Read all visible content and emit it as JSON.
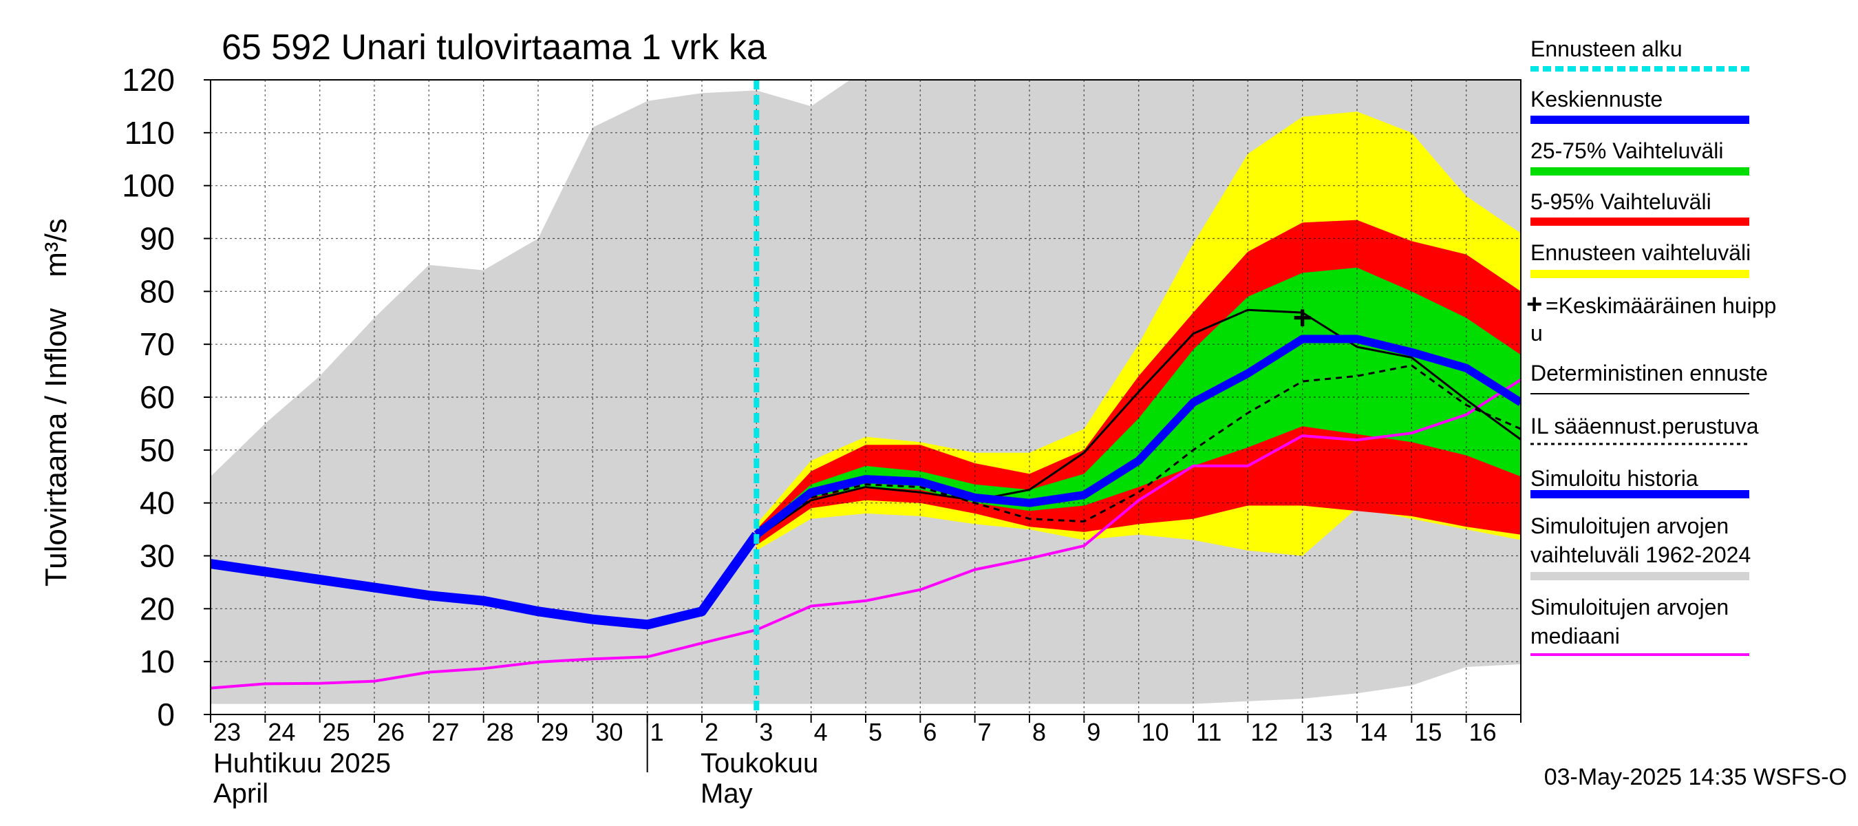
{
  "chart_data": {
    "type": "area",
    "title": "65 592 Unari tulovirtaama 1 vrk ka",
    "ylabel": "Tulovirtaama / Inflow",
    "yunit": "m³/s",
    "ylim": [
      0,
      120
    ],
    "yticks": [
      0,
      10,
      20,
      30,
      40,
      50,
      60,
      70,
      80,
      90,
      100,
      110,
      120
    ],
    "x_dates": [
      "2025-04-23",
      "2025-04-24",
      "2025-04-25",
      "2025-04-26",
      "2025-04-27",
      "2025-04-28",
      "2025-04-29",
      "2025-04-30",
      "2025-05-01",
      "2025-05-02",
      "2025-05-03",
      "2025-05-04",
      "2025-05-05",
      "2025-05-06",
      "2025-05-07",
      "2025-05-08",
      "2025-05-09",
      "2025-05-10",
      "2025-05-11",
      "2025-05-12",
      "2025-05-13",
      "2025-05-14",
      "2025-05-15",
      "2025-05-16",
      "2025-05-17"
    ],
    "xlim": [
      "2025-04-23",
      "2025-05-17"
    ],
    "day_labels": [
      "23",
      "24",
      "25",
      "26",
      "27",
      "28",
      "29",
      "30",
      "1",
      "2",
      "3",
      "4",
      "5",
      "6",
      "7",
      "8",
      "9",
      "10",
      "11",
      "12",
      "13",
      "14",
      "15",
      "16"
    ],
    "month_labels": {
      "april_fi": "Huhtikuu  2025",
      "april_en": "April",
      "may_fi": "Toukokuu",
      "may_en": "May"
    },
    "forecast_start": "2025-05-03",
    "grid": true,
    "legend_position": "right",
    "legend": [
      {
        "label": "Ennusteen alku",
        "color": "#00e5e5",
        "style": "dashed"
      },
      {
        "label": "Keskiennuste",
        "color": "#0000ff",
        "style": "thick"
      },
      {
        "label": "25-75% Vaihteluväli",
        "color": "#00dd00",
        "style": "thick"
      },
      {
        "label": "5-95% Vaihteluväli",
        "color": "#ff0000",
        "style": "thick"
      },
      {
        "label": "Ennusteen vaihteluväli",
        "color": "#ffff00",
        "style": "thick"
      },
      {
        "label": "=Keskimääräinen huipp u",
        "color": "#000000",
        "style": "plus"
      },
      {
        "label": "Deterministinen ennuste",
        "color": "#000000",
        "style": "thin"
      },
      {
        "label": "IL sääennust.perustuva",
        "color": "#000000",
        "style": "dotted"
      },
      {
        "label": "Simuloitu historia",
        "color": "#0000ff",
        "style": "thick"
      },
      {
        "label": "Simuloitujen arvojen vaihteluväli 1962-2024",
        "color": "#d3d3d3",
        "style": "thick"
      },
      {
        "label": "Simuloitujen arvojen mediaani",
        "color": "#ff00ff",
        "style": "thin"
      }
    ],
    "series": [
      {
        "name": "Simuloitujen arvojen vaihteluväli 1962-2024",
        "kind": "band",
        "x": [
          "2025-04-23",
          "2025-04-24",
          "2025-04-25",
          "2025-04-26",
          "2025-04-27",
          "2025-04-28",
          "2025-04-29",
          "2025-04-30",
          "2025-05-01",
          "2025-05-02",
          "2025-05-03",
          "2025-05-04",
          "2025-05-05",
          "2025-05-06",
          "2025-05-07",
          "2025-05-08",
          "2025-05-09",
          "2025-05-10",
          "2025-05-11",
          "2025-05-12",
          "2025-05-13",
          "2025-05-14",
          "2025-05-15",
          "2025-05-16",
          "2025-05-17"
        ],
        "lower": [
          2.0,
          2.0,
          2.0,
          2.0,
          2.0,
          2.0,
          2.0,
          2.0,
          2.0,
          2.0,
          2.0,
          2.0,
          2.0,
          2.0,
          2.0,
          2.0,
          2.0,
          2.0,
          2.0,
          2.5,
          3.0,
          4.0,
          5.5,
          9.0,
          9.5
        ],
        "upper": [
          45,
          55,
          64,
          75,
          85,
          84,
          90,
          111,
          116,
          117.5,
          118,
          115,
          122,
          122,
          122,
          122,
          122,
          122,
          122,
          122,
          122,
          122,
          122,
          122,
          122
        ]
      },
      {
        "name": "Ennusteen vaihteluväli",
        "kind": "band",
        "x": [
          "2025-05-03",
          "2025-05-04",
          "2025-05-05",
          "2025-05-06",
          "2025-05-07",
          "2025-05-08",
          "2025-05-09",
          "2025-05-10",
          "2025-05-11",
          "2025-05-12",
          "2025-05-13",
          "2025-05-14",
          "2025-05-15",
          "2025-05-16",
          "2025-05-17"
        ],
        "lower": [
          31,
          37,
          38,
          37.5,
          36,
          35,
          33,
          34,
          33,
          31,
          30,
          39,
          37,
          35,
          33
        ],
        "upper": [
          36,
          48,
          52.5,
          51.5,
          49.5,
          49.5,
          54,
          70,
          89,
          106,
          113,
          114,
          110,
          98,
          91
        ]
      },
      {
        "name": "5-95% Vaihteluväli",
        "kind": "band",
        "x": [
          "2025-05-03",
          "2025-05-04",
          "2025-05-05",
          "2025-05-06",
          "2025-05-07",
          "2025-05-08",
          "2025-05-09",
          "2025-05-10",
          "2025-05-11",
          "2025-05-12",
          "2025-05-13",
          "2025-05-14",
          "2025-05-15",
          "2025-05-16",
          "2025-05-17"
        ],
        "lower": [
          32,
          39,
          40.5,
          40,
          38,
          35.5,
          34.5,
          36,
          37,
          39.5,
          39.5,
          38.5,
          37.5,
          35.5,
          34
        ],
        "upper": [
          35,
          46,
          51,
          51,
          47.5,
          45.5,
          50,
          64,
          76,
          87.5,
          93,
          93.5,
          89.5,
          87,
          80
        ]
      },
      {
        "name": "25-75% Vaihteluväli",
        "kind": "band",
        "x": [
          "2025-05-03",
          "2025-05-04",
          "2025-05-05",
          "2025-05-06",
          "2025-05-07",
          "2025-05-08",
          "2025-05-09",
          "2025-05-10",
          "2025-05-11",
          "2025-05-12",
          "2025-05-13",
          "2025-05-14",
          "2025-05-15",
          "2025-05-16",
          "2025-05-17"
        ],
        "lower": [
          33,
          41,
          43,
          42.5,
          40,
          38.5,
          39.5,
          43,
          47,
          50.5,
          54.5,
          53,
          51.5,
          49,
          45
        ],
        "upper": [
          34.5,
          43.5,
          47,
          46,
          43.5,
          42.5,
          45.5,
          56,
          69,
          79,
          83.5,
          84.5,
          80,
          75,
          68
        ]
      },
      {
        "name": "Simuloitujen arvojen mediaani",
        "kind": "line",
        "x": [
          "2025-04-23",
          "2025-04-24",
          "2025-04-25",
          "2025-04-26",
          "2025-04-27",
          "2025-04-28",
          "2025-04-29",
          "2025-04-30",
          "2025-05-01",
          "2025-05-02",
          "2025-05-03",
          "2025-05-04",
          "2025-05-05",
          "2025-05-06",
          "2025-05-07",
          "2025-05-08",
          "2025-05-09",
          "2025-05-10",
          "2025-05-11",
          "2025-05-12",
          "2025-05-13",
          "2025-05-14",
          "2025-05-15",
          "2025-05-16",
          "2025-05-17"
        ],
        "values": [
          5.0,
          5.8,
          5.9,
          6.3,
          8.0,
          8.7,
          9.9,
          10.5,
          10.9,
          13.5,
          16.0,
          20.5,
          21.5,
          23.6,
          27.4,
          29.5,
          31.9,
          40.5,
          47.0,
          47.0,
          52.7,
          51.9,
          53.2,
          56.7,
          63.3
        ]
      },
      {
        "name": "Simuloitu historia",
        "kind": "line",
        "x": [
          "2025-04-23",
          "2025-04-24",
          "2025-04-25",
          "2025-04-26",
          "2025-04-27",
          "2025-04-28",
          "2025-04-29",
          "2025-04-30",
          "2025-05-01",
          "2025-05-02",
          "2025-05-03"
        ],
        "values": [
          28.5,
          27.0,
          25.5,
          24.0,
          22.5,
          21.5,
          19.5,
          18.0,
          17.0,
          19.5,
          34.0
        ]
      },
      {
        "name": "IL sääennust.perustuva",
        "kind": "line",
        "x": [
          "2025-05-03",
          "2025-05-04",
          "2025-05-05",
          "2025-05-06",
          "2025-05-07",
          "2025-05-08",
          "2025-05-09",
          "2025-05-10",
          "2025-05-11",
          "2025-05-12",
          "2025-05-13",
          "2025-05-14",
          "2025-05-15",
          "2025-05-16",
          "2025-05-17"
        ],
        "values": [
          34.0,
          41.0,
          43.5,
          43.0,
          40.0,
          37.0,
          36.5,
          42.0,
          50.0,
          57.0,
          63.0,
          64.0,
          66.0,
          58.5,
          54.0
        ]
      },
      {
        "name": "Deterministinen ennuste",
        "kind": "line",
        "x": [
          "2025-05-03",
          "2025-05-04",
          "2025-05-05",
          "2025-05-06",
          "2025-05-07",
          "2025-05-08",
          "2025-05-09",
          "2025-05-10",
          "2025-05-11",
          "2025-05-12",
          "2025-05-13",
          "2025-05-14",
          "2025-05-15",
          "2025-05-16",
          "2025-05-17"
        ],
        "values": [
          33.5,
          40.5,
          43.0,
          42.0,
          40.5,
          42.5,
          49.5,
          61.0,
          72.0,
          76.5,
          76.0,
          69.5,
          67.5,
          59.5,
          52.0
        ]
      },
      {
        "name": "Keskiennuste",
        "kind": "line",
        "x": [
          "2025-05-03",
          "2025-05-04",
          "2025-05-05",
          "2025-05-06",
          "2025-05-07",
          "2025-05-08",
          "2025-05-09",
          "2025-05-10",
          "2025-05-11",
          "2025-05-12",
          "2025-05-13",
          "2025-05-14",
          "2025-05-15",
          "2025-05-16",
          "2025-05-17"
        ],
        "values": [
          34.0,
          42.0,
          44.5,
          44.0,
          41.0,
          40.0,
          41.5,
          48.0,
          59.0,
          64.5,
          71.0,
          71.0,
          68.5,
          65.5,
          59.0
        ]
      }
    ],
    "peak_marker": {
      "label": "+",
      "x": "2025-05-13",
      "y": 75
    },
    "timestamp": "03-May-2025 14:35 WSFS-O"
  }
}
